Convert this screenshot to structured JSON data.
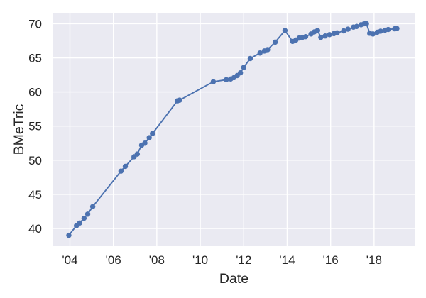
{
  "chart_data": {
    "type": "line",
    "title": "",
    "xlabel": "Date",
    "ylabel": "BMeTric",
    "x_ticks": {
      "values": [
        2004,
        2006,
        2008,
        2010,
        2012,
        2014,
        2016,
        2018
      ],
      "labels": [
        "'04",
        "'06",
        "'08",
        "'10",
        "'12",
        "'14",
        "'16",
        "'18"
      ]
    },
    "y_ticks": {
      "values": [
        40,
        45,
        50,
        55,
        60,
        65,
        70
      ],
      "labels": [
        "40",
        "45",
        "50",
        "55",
        "60",
        "65",
        "70"
      ]
    },
    "xlim": [
      2003.2,
      2019.9
    ],
    "ylim": [
      37.4,
      71.6
    ],
    "grid": true,
    "legend": false,
    "style": {
      "figure_background": "#ffffff",
      "axes_background": "#eaeaf2",
      "grid_color": "#ffffff",
      "text_color": "#262626",
      "line_color": "#4c72b0",
      "marker": "circle"
    },
    "series": [
      {
        "name": "BMeTric",
        "color": "#4c72b0",
        "points": [
          [
            2003.95,
            39.0
          ],
          [
            2004.3,
            40.4
          ],
          [
            2004.45,
            40.8
          ],
          [
            2004.65,
            41.5
          ],
          [
            2004.82,
            42.1
          ],
          [
            2005.05,
            43.2
          ],
          [
            2006.35,
            48.4
          ],
          [
            2006.55,
            49.1
          ],
          [
            2006.95,
            50.5
          ],
          [
            2007.1,
            50.9
          ],
          [
            2007.3,
            52.2
          ],
          [
            2007.45,
            52.5
          ],
          [
            2007.65,
            53.3
          ],
          [
            2007.8,
            53.9
          ],
          [
            2008.95,
            58.7
          ],
          [
            2009.05,
            58.8
          ],
          [
            2010.6,
            61.5
          ],
          [
            2011.2,
            61.8
          ],
          [
            2011.4,
            61.9
          ],
          [
            2011.55,
            62.1
          ],
          [
            2011.7,
            62.4
          ],
          [
            2011.85,
            62.8
          ],
          [
            2012.0,
            63.6
          ],
          [
            2012.3,
            64.9
          ],
          [
            2012.75,
            65.7
          ],
          [
            2012.95,
            66.0
          ],
          [
            2013.1,
            66.2
          ],
          [
            2013.45,
            67.3
          ],
          [
            2013.9,
            69.0
          ],
          [
            2014.25,
            67.4
          ],
          [
            2014.4,
            67.6
          ],
          [
            2014.55,
            67.9
          ],
          [
            2014.7,
            68.0
          ],
          [
            2014.85,
            68.1
          ],
          [
            2015.1,
            68.5
          ],
          [
            2015.25,
            68.8
          ],
          [
            2015.4,
            69.0
          ],
          [
            2015.55,
            68.0
          ],
          [
            2015.75,
            68.2
          ],
          [
            2015.95,
            68.4
          ],
          [
            2016.15,
            68.55
          ],
          [
            2016.3,
            68.65
          ],
          [
            2016.6,
            68.95
          ],
          [
            2016.8,
            69.2
          ],
          [
            2017.05,
            69.5
          ],
          [
            2017.2,
            69.6
          ],
          [
            2017.4,
            69.85
          ],
          [
            2017.55,
            70.0
          ],
          [
            2017.65,
            70.0
          ],
          [
            2017.8,
            68.6
          ],
          [
            2017.95,
            68.5
          ],
          [
            2018.15,
            68.75
          ],
          [
            2018.3,
            68.9
          ],
          [
            2018.5,
            69.05
          ],
          [
            2018.65,
            69.15
          ],
          [
            2018.95,
            69.25
          ],
          [
            2019.05,
            69.3
          ]
        ]
      }
    ]
  }
}
